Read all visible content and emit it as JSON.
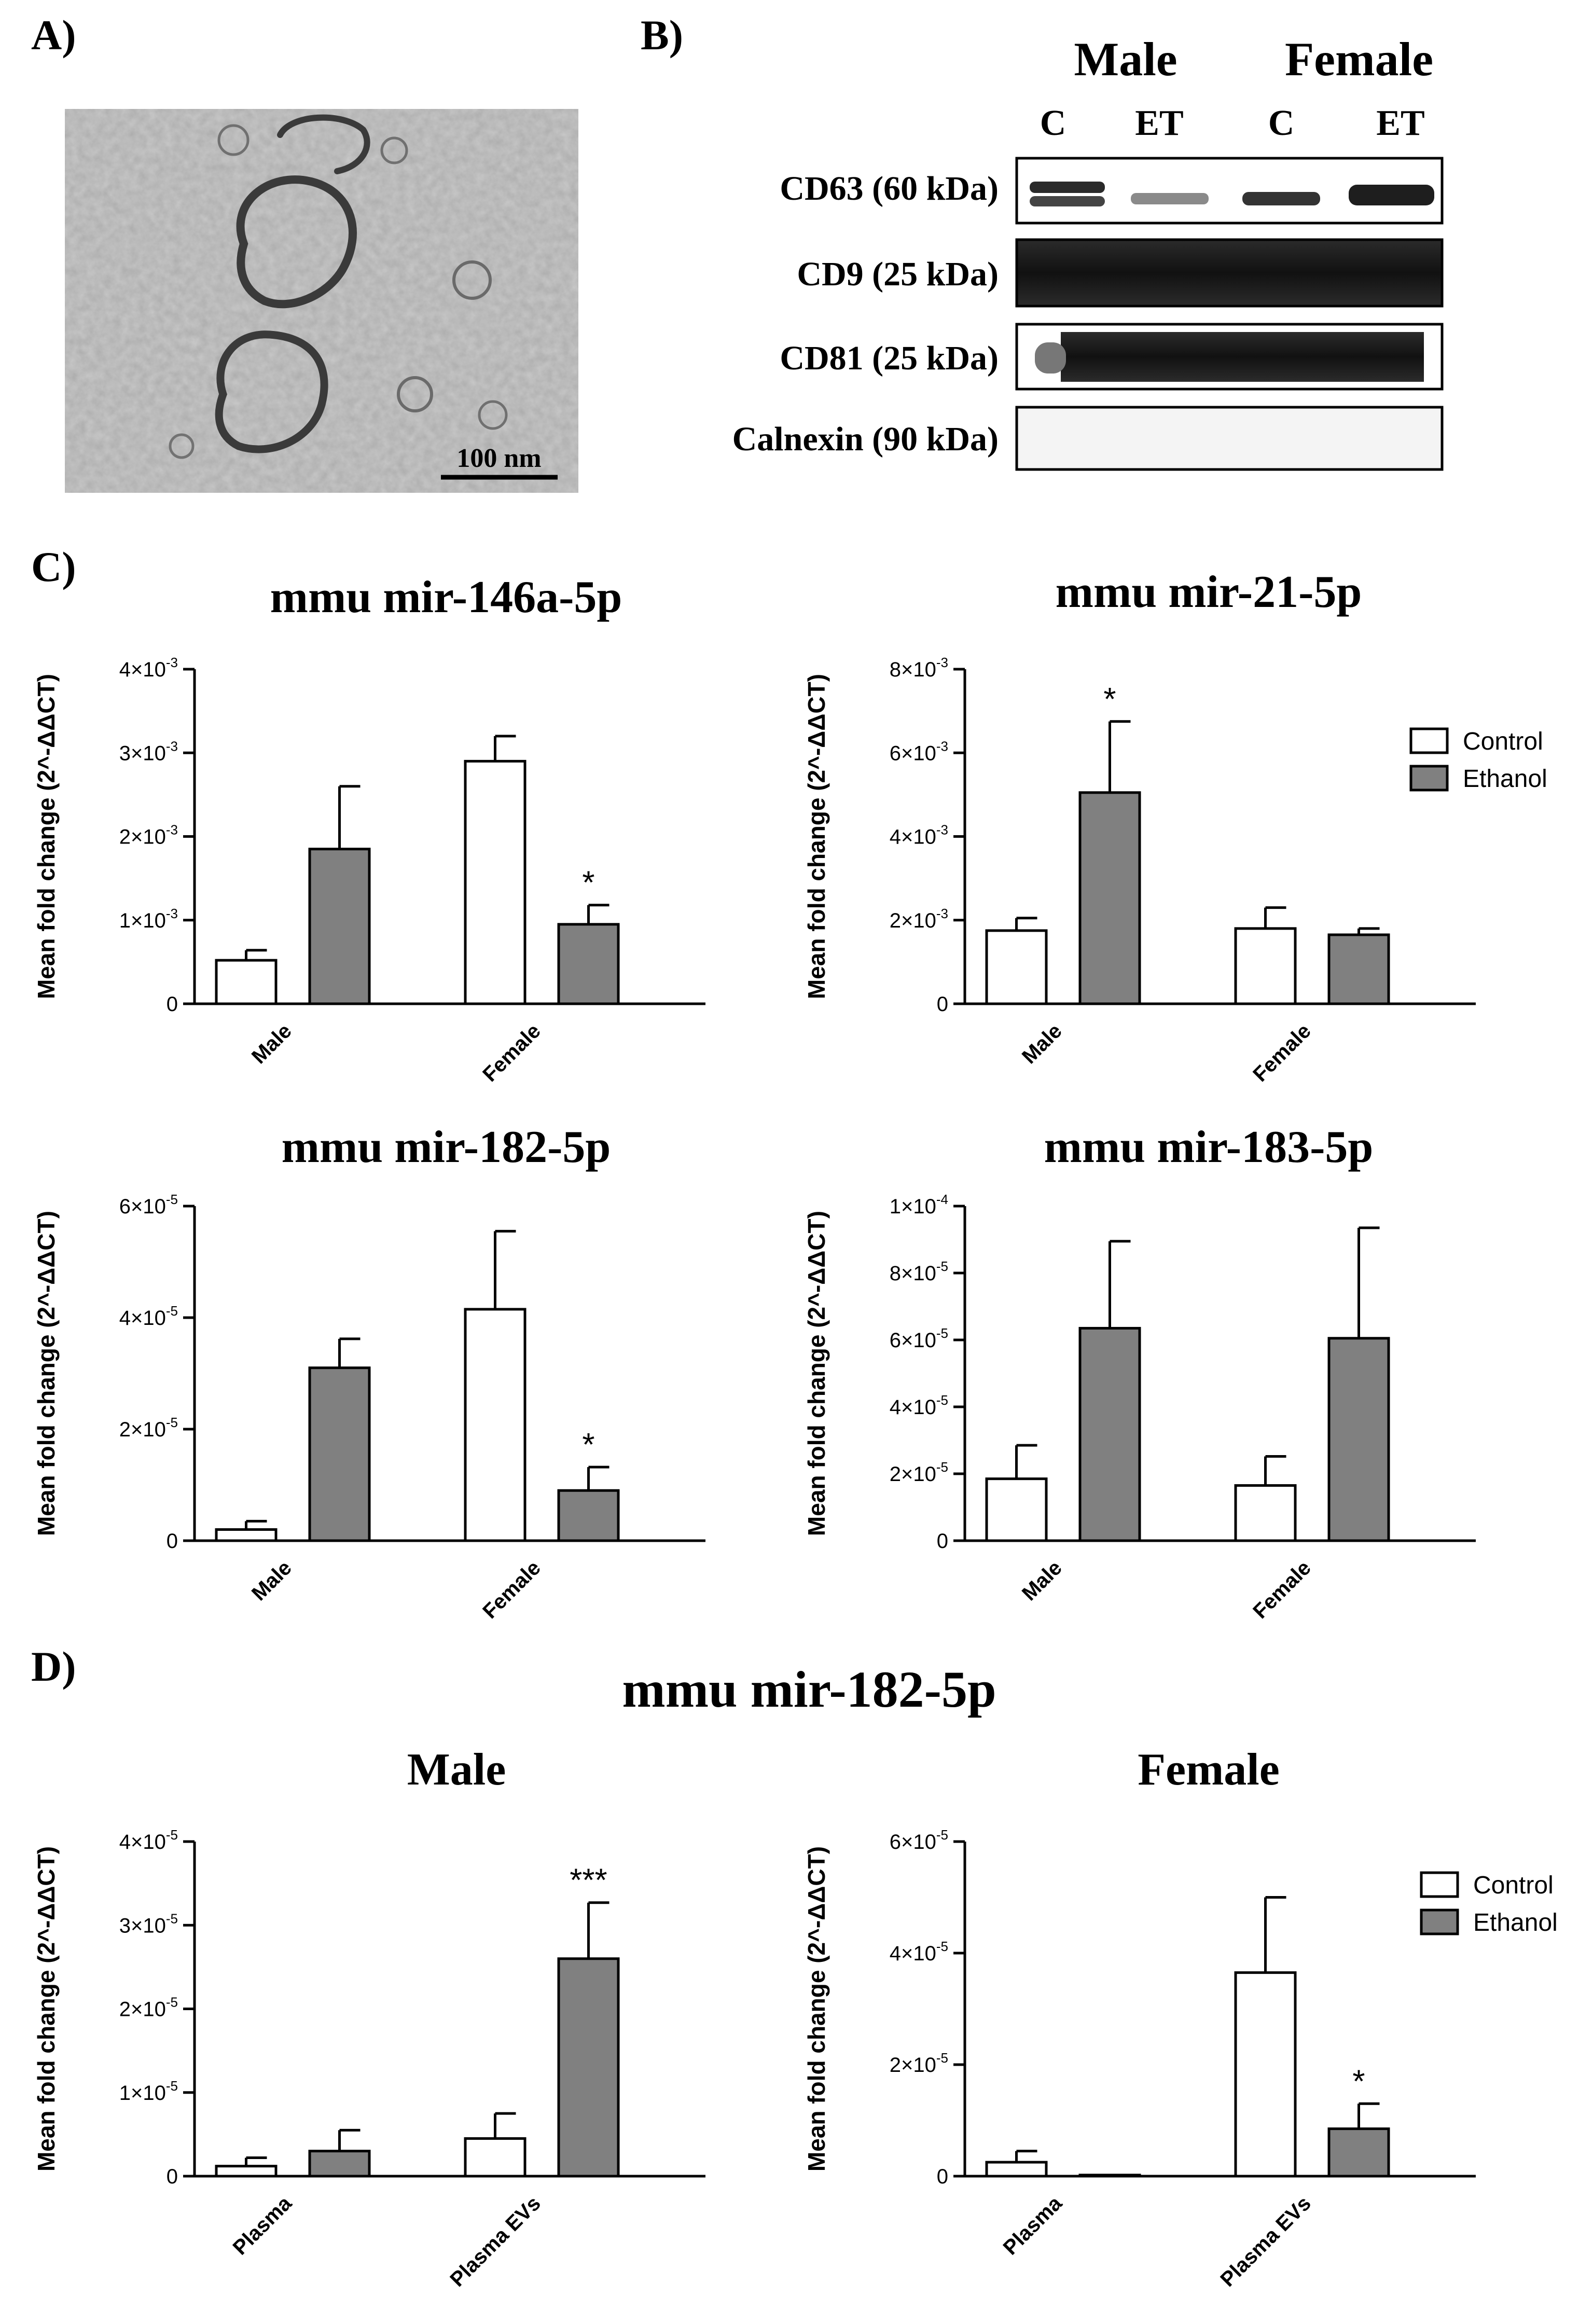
{
  "panels": {
    "a": {
      "label": "A)",
      "scalebar": "100 nm"
    },
    "b": {
      "label": "B)",
      "groups": [
        "Male",
        "Female"
      ],
      "lanes": [
        "C",
        "ET",
        "C",
        "ET"
      ],
      "blots": [
        {
          "label": "CD63 (60 kDa)"
        },
        {
          "label": "CD9 (25 kDa)"
        },
        {
          "label": "CD81 (25 kDa)"
        },
        {
          "label": "Calnexin (90 kDa)"
        }
      ]
    },
    "c": {
      "label": "C)"
    },
    "d": {
      "label": "D)",
      "title": "mmu mir-182-5p"
    }
  },
  "legend": {
    "control": "Control",
    "ethanol": "Ethanol"
  },
  "colors": {
    "control": "#ffffff",
    "ethanol": "#808080",
    "ink": "#000000"
  },
  "chart_data": [
    {
      "id": "c1",
      "type": "bar",
      "title": "mmu mir-146a-5p",
      "ylabel": "Mean fold change (2^-ΔΔCT)",
      "categories": [
        "Male",
        "Female"
      ],
      "ylim": [
        0,
        0.004
      ],
      "yticks": [
        {
          "v": 0,
          "m": "0",
          "e": ""
        },
        {
          "v": 0.001,
          "m": "1×10",
          "e": "-3"
        },
        {
          "v": 0.002,
          "m": "2×10",
          "e": "-3"
        },
        {
          "v": 0.003,
          "m": "3×10",
          "e": "-3"
        },
        {
          "v": 0.004,
          "m": "4×10",
          "e": "-3"
        }
      ],
      "series": [
        {
          "name": "Control",
          "values": [
            0.00052,
            0.0029
          ],
          "errors": [
            0.00012,
            0.0003
          ]
        },
        {
          "name": "Ethanol",
          "values": [
            0.00185,
            0.00095
          ],
          "errors": [
            0.00075,
            0.00023
          ]
        }
      ],
      "significance": [
        {
          "category": 1,
          "series": 1,
          "text": "*"
        }
      ]
    },
    {
      "id": "c2",
      "type": "bar",
      "title": "mmu mir-21-5p",
      "ylabel": "Mean fold change (2^-ΔΔCT)",
      "categories": [
        "Male",
        "Female"
      ],
      "ylim": [
        0,
        0.008
      ],
      "yticks": [
        {
          "v": 0,
          "m": "0",
          "e": ""
        },
        {
          "v": 0.002,
          "m": "2×10",
          "e": "-3"
        },
        {
          "v": 0.004,
          "m": "4×10",
          "e": "-3"
        },
        {
          "v": 0.006,
          "m": "6×10",
          "e": "-3"
        },
        {
          "v": 0.008,
          "m": "8×10",
          "e": "-3"
        }
      ],
      "series": [
        {
          "name": "Control",
          "values": [
            0.00175,
            0.0018
          ],
          "errors": [
            0.0003,
            0.0005
          ]
        },
        {
          "name": "Ethanol",
          "values": [
            0.00505,
            0.00165
          ],
          "errors": [
            0.0017,
            0.00015
          ]
        }
      ],
      "significance": [
        {
          "category": 0,
          "series": 1,
          "text": "*"
        }
      ],
      "legend": true
    },
    {
      "id": "c3",
      "type": "bar",
      "title": "mmu mir-182-5p",
      "ylabel": "Mean fold change (2^-ΔΔCT)",
      "categories": [
        "Male",
        "Female"
      ],
      "ylim": [
        0,
        6e-05
      ],
      "yticks": [
        {
          "v": 0,
          "m": "0",
          "e": ""
        },
        {
          "v": 2e-05,
          "m": "2×10",
          "e": "-5"
        },
        {
          "v": 4e-05,
          "m": "4×10",
          "e": "-5"
        },
        {
          "v": 6e-05,
          "m": "6×10",
          "e": "-5"
        }
      ],
      "series": [
        {
          "name": "Control",
          "values": [
            2e-06,
            4.15e-05
          ],
          "errors": [
            1.5e-06,
            1.4e-05
          ]
        },
        {
          "name": "Ethanol",
          "values": [
            3.1e-05,
            9e-06
          ],
          "errors": [
            5.2e-06,
            4.2e-06
          ]
        }
      ],
      "significance": [
        {
          "category": 1,
          "series": 1,
          "text": "*"
        }
      ]
    },
    {
      "id": "c4",
      "type": "bar",
      "title": "mmu mir-183-5p",
      "ylabel": "Mean fold change (2^-ΔΔCT)",
      "categories": [
        "Male",
        "Female"
      ],
      "ylim": [
        0,
        0.0001
      ],
      "yticks": [
        {
          "v": 0,
          "m": "0",
          "e": ""
        },
        {
          "v": 2e-05,
          "m": "2×10",
          "e": "-5"
        },
        {
          "v": 4e-05,
          "m": "4×10",
          "e": "-5"
        },
        {
          "v": 6e-05,
          "m": "6×10",
          "e": "-5"
        },
        {
          "v": 8e-05,
          "m": "8×10",
          "e": "-5"
        },
        {
          "v": 0.0001,
          "m": "1×10",
          "e": "-4"
        }
      ],
      "series": [
        {
          "name": "Control",
          "values": [
            1.85e-05,
            1.65e-05
          ],
          "errors": [
            1e-05,
            8.7e-06
          ]
        },
        {
          "name": "Ethanol",
          "values": [
            6.35e-05,
            6.05e-05
          ],
          "errors": [
            2.6e-05,
            3.3e-05
          ]
        }
      ],
      "significance": []
    },
    {
      "id": "d1",
      "type": "bar",
      "title": "Male",
      "ylabel": "Mean fold change (2^-ΔΔCT)",
      "categories": [
        "Plasma",
        "Plasma EVs"
      ],
      "ylim": [
        0,
        4e-05
      ],
      "yticks": [
        {
          "v": 0,
          "m": "0",
          "e": ""
        },
        {
          "v": 1e-05,
          "m": "1×10",
          "e": "-5"
        },
        {
          "v": 2e-05,
          "m": "2×10",
          "e": "-5"
        },
        {
          "v": 3e-05,
          "m": "3×10",
          "e": "-5"
        },
        {
          "v": 4e-05,
          "m": "4×10",
          "e": "-5"
        }
      ],
      "series": [
        {
          "name": "Control",
          "values": [
            1.2e-06,
            4.5e-06
          ],
          "errors": [
            1e-06,
            3e-06
          ]
        },
        {
          "name": "Ethanol",
          "values": [
            3e-06,
            2.6e-05
          ],
          "errors": [
            2.5e-06,
            6.7e-06
          ]
        }
      ],
      "significance": [
        {
          "category": 1,
          "series": 1,
          "text": "***"
        }
      ]
    },
    {
      "id": "d2",
      "type": "bar",
      "title": "Female",
      "ylabel": "Mean fold change (2^-ΔΔCT)",
      "categories": [
        "Plasma",
        "Plasma EVs"
      ],
      "ylim": [
        0,
        6e-05
      ],
      "yticks": [
        {
          "v": 0,
          "m": "0",
          "e": ""
        },
        {
          "v": 2e-05,
          "m": "2×10",
          "e": "-5"
        },
        {
          "v": 4e-05,
          "m": "4×10",
          "e": "-5"
        },
        {
          "v": 6e-05,
          "m": "6×10",
          "e": "-5"
        }
      ],
      "series": [
        {
          "name": "Control",
          "values": [
            2.5e-06,
            3.65e-05
          ],
          "errors": [
            2e-06,
            1.35e-05
          ]
        },
        {
          "name": "Ethanol",
          "values": [
            2e-07,
            8.5e-06
          ],
          "errors": [
            0.0,
            4.5e-06
          ]
        }
      ],
      "significance": [
        {
          "category": 1,
          "series": 1,
          "text": "*"
        }
      ],
      "legend": true
    }
  ]
}
